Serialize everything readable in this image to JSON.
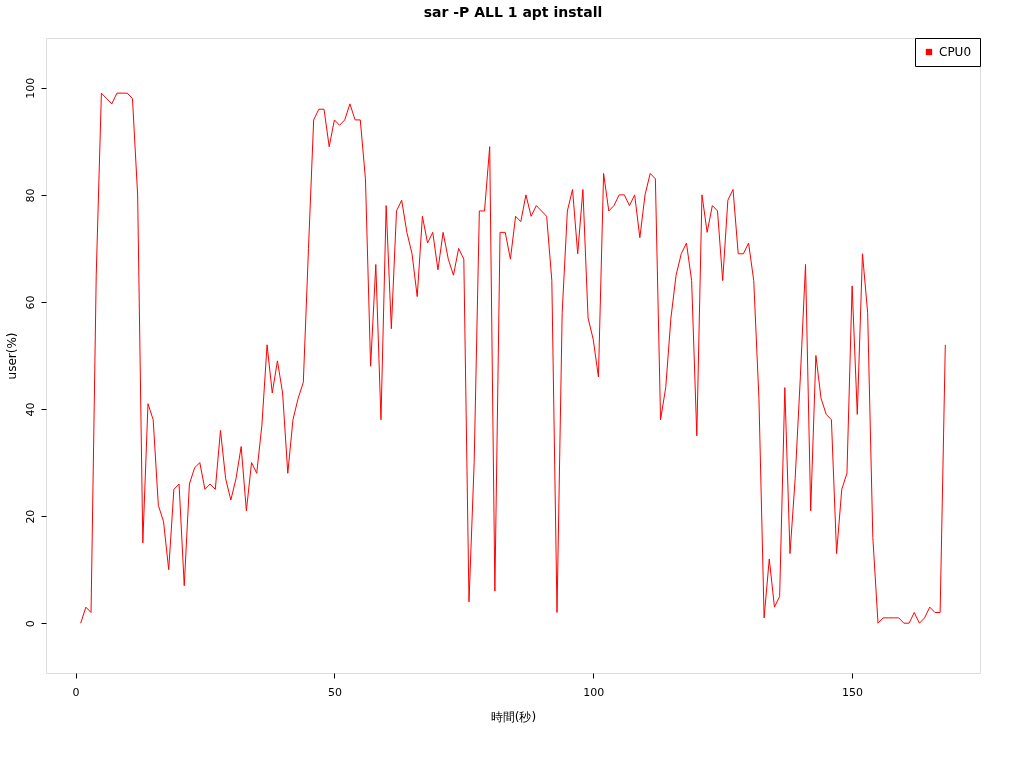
{
  "chart_data": {
    "type": "line",
    "title": "sar -P ALL 1 apt install",
    "xlabel": "時間(秒)",
    "ylabel": "user(%)",
    "x": [
      1,
      2,
      3,
      4,
      5,
      6,
      7,
      8,
      9,
      10,
      11,
      12,
      13,
      14,
      15,
      16,
      17,
      18,
      19,
      20,
      21,
      22,
      23,
      24,
      25,
      26,
      27,
      28,
      29,
      30,
      31,
      32,
      33,
      34,
      35,
      36,
      37,
      38,
      39,
      40,
      41,
      42,
      43,
      44,
      45,
      46,
      47,
      48,
      49,
      50,
      51,
      52,
      53,
      54,
      55,
      56,
      57,
      58,
      59,
      60,
      61,
      62,
      63,
      64,
      65,
      66,
      67,
      68,
      69,
      70,
      71,
      72,
      73,
      74,
      75,
      76,
      77,
      78,
      79,
      80,
      81,
      82,
      83,
      84,
      85,
      86,
      87,
      88,
      89,
      90,
      91,
      92,
      93,
      94,
      95,
      96,
      97,
      98,
      99,
      100,
      101,
      102,
      103,
      104,
      105,
      106,
      107,
      108,
      109,
      110,
      111,
      112,
      113,
      114,
      115,
      116,
      117,
      118,
      119,
      120,
      121,
      122,
      123,
      124,
      125,
      126,
      127,
      128,
      129,
      130,
      131,
      132,
      133,
      134,
      135,
      136,
      137,
      138,
      139,
      140,
      141,
      142,
      143,
      144,
      145,
      146,
      147,
      148,
      149,
      150,
      151,
      152,
      153,
      154,
      155,
      156,
      157,
      158,
      159,
      160,
      161,
      162,
      163,
      164,
      165,
      166,
      167,
      168
    ],
    "series": [
      {
        "name": "CPU0",
        "color": "#ff0000",
        "values": [
          0,
          3,
          2,
          65,
          99,
          98,
          97,
          99,
          99,
          99,
          98,
          80,
          15,
          41,
          38,
          22,
          19,
          10,
          25,
          26,
          7,
          26,
          29,
          30,
          25,
          26,
          25,
          36,
          27,
          23,
          27,
          33,
          21,
          30,
          28,
          37,
          52,
          43,
          49,
          43,
          28,
          38,
          42,
          45,
          70,
          94,
          96,
          96,
          89,
          94,
          93,
          94,
          97,
          94,
          94,
          83,
          48,
          67,
          38,
          78,
          55,
          77,
          79,
          73,
          69,
          61,
          76,
          71,
          73,
          66,
          73,
          68,
          65,
          70,
          68,
          4,
          30,
          77,
          77,
          89,
          6,
          73,
          73,
          68,
          76,
          75,
          80,
          76,
          78,
          77,
          76,
          64,
          2,
          58,
          77,
          81,
          69,
          81,
          57,
          53,
          46,
          84,
          77,
          78,
          80,
          80,
          78,
          80,
          72,
          80,
          84,
          83,
          38,
          44,
          57,
          65,
          69,
          71,
          64,
          35,
          80,
          73,
          78,
          77,
          64,
          79,
          81,
          69,
          69,
          71,
          64,
          42,
          1,
          12,
          3,
          5,
          44,
          13,
          27,
          46,
          67,
          21,
          50,
          42,
          39,
          38,
          13,
          25,
          28,
          63,
          39,
          69,
          58,
          16,
          0,
          1,
          1,
          1,
          1,
          0,
          0,
          2,
          0,
          1,
          3,
          2,
          2,
          52
        ]
      }
    ],
    "xlim": [
      -5.7,
      174.7
    ],
    "ylim": [
      -9.3,
      109.3
    ],
    "xticks": [
      0,
      50,
      100,
      150
    ],
    "yticks": [
      0,
      20,
      40,
      60,
      80,
      100
    ],
    "grid": false,
    "legend": "top right",
    "marker": "none",
    "line_style": "solid"
  }
}
